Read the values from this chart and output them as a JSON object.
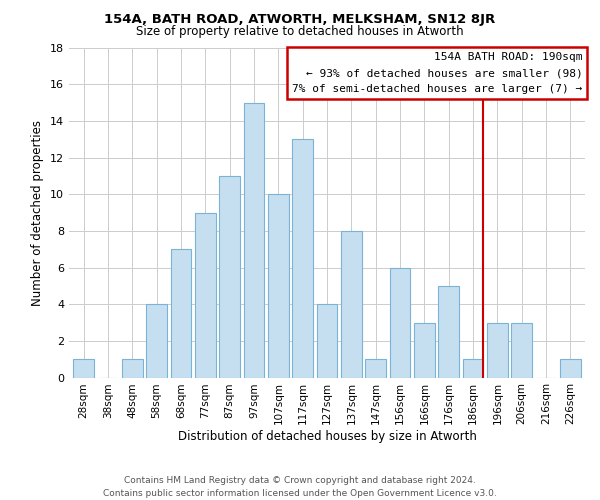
{
  "title": "154A, BATH ROAD, ATWORTH, MELKSHAM, SN12 8JR",
  "subtitle": "Size of property relative to detached houses in Atworth",
  "xlabel": "Distribution of detached houses by size in Atworth",
  "ylabel": "Number of detached properties",
  "bar_labels": [
    "28sqm",
    "38sqm",
    "48sqm",
    "58sqm",
    "68sqm",
    "77sqm",
    "87sqm",
    "97sqm",
    "107sqm",
    "117sqm",
    "127sqm",
    "137sqm",
    "147sqm",
    "156sqm",
    "166sqm",
    "176sqm",
    "186sqm",
    "196sqm",
    "206sqm",
    "216sqm",
    "226sqm"
  ],
  "bar_values": [
    1,
    0,
    1,
    4,
    7,
    9,
    11,
    15,
    10,
    13,
    4,
    8,
    1,
    6,
    3,
    5,
    1,
    3,
    3,
    0,
    1
  ],
  "bar_color": "#c6dff0",
  "bar_edgecolor": "#7ab3d4",
  "vline_x_index": 16,
  "vline_color": "#cc0000",
  "ylim": [
    0,
    18
  ],
  "yticks": [
    0,
    2,
    4,
    6,
    8,
    10,
    12,
    14,
    16,
    18
  ],
  "annotation_title": "154A BATH ROAD: 190sqm",
  "annotation_line1": "← 93% of detached houses are smaller (98)",
  "annotation_line2": "7% of semi-detached houses are larger (7) →",
  "annotation_box_color": "#ffffff",
  "annotation_box_edgecolor": "#cc0000",
  "footer_line1": "Contains HM Land Registry data © Crown copyright and database right 2024.",
  "footer_line2": "Contains public sector information licensed under the Open Government Licence v3.0.",
  "background_color": "#ffffff",
  "grid_color": "#cccccc"
}
